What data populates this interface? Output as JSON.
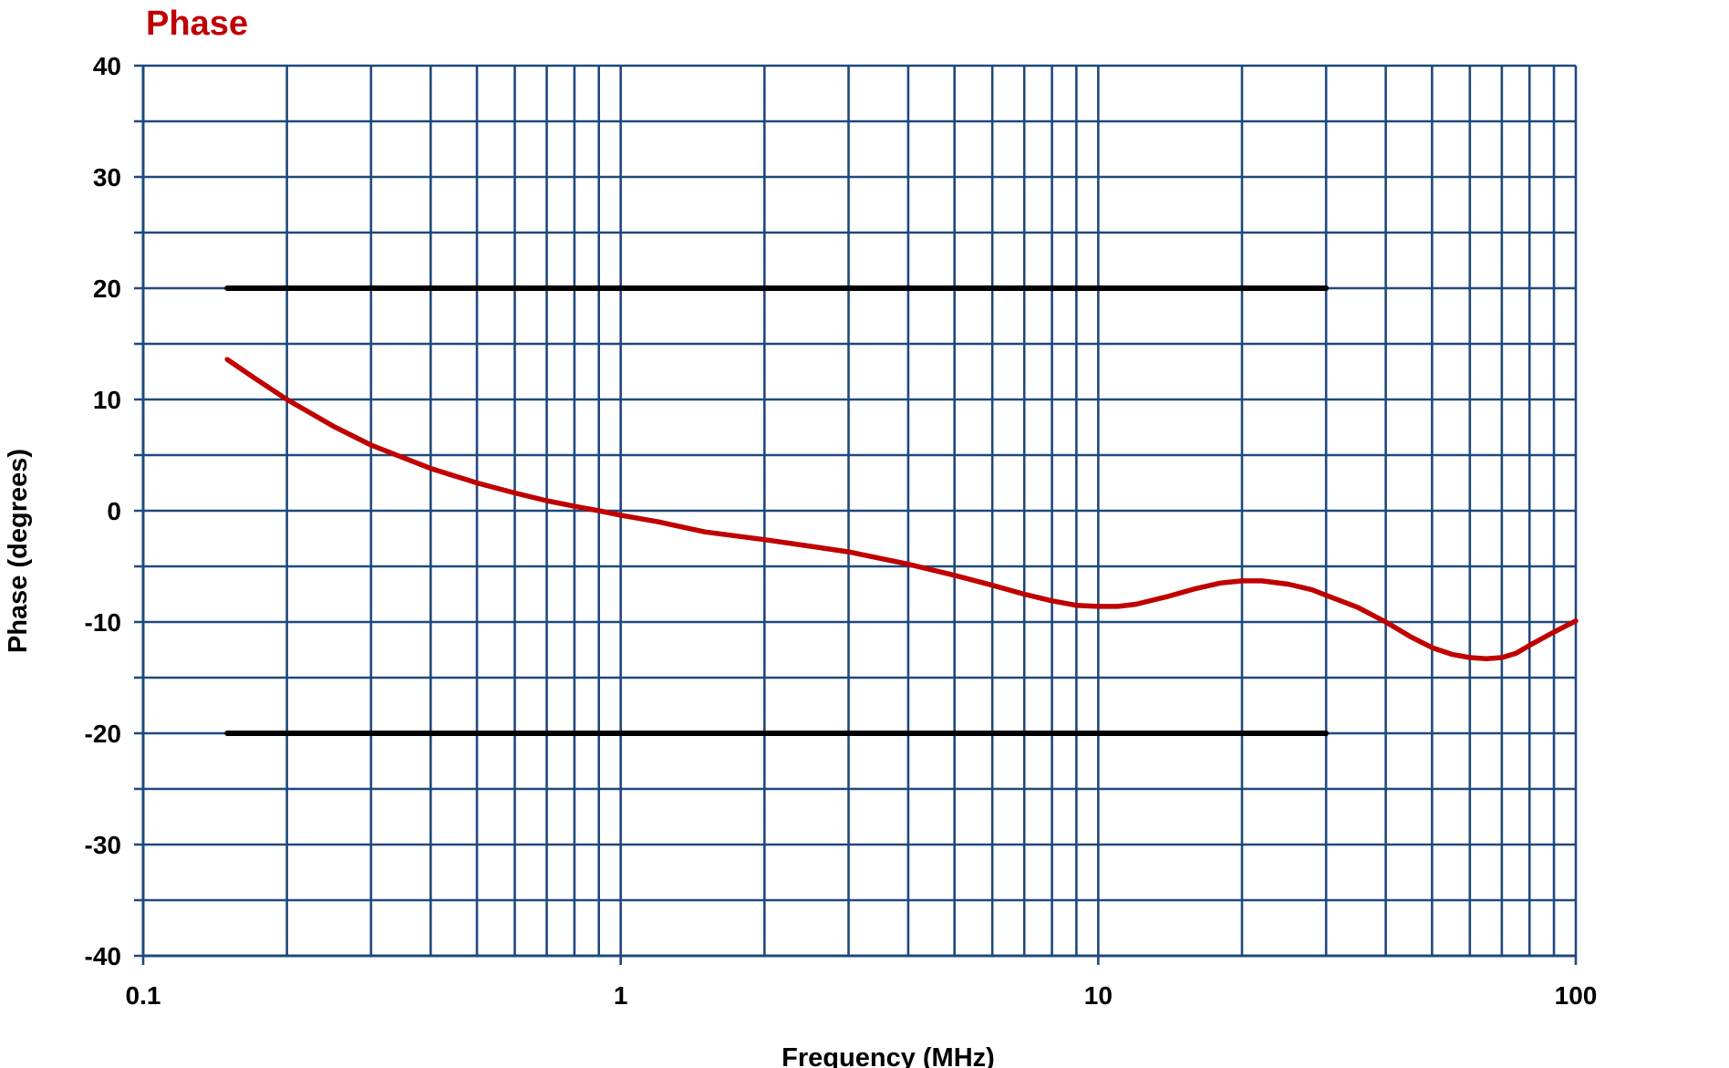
{
  "chart_data": {
    "type": "line",
    "title": "Phase",
    "xlabel": "Frequency (MHz)",
    "ylabel": "Phase (degrees)",
    "x_scale": "log",
    "xlim": [
      0.1,
      100
    ],
    "ylim": [
      -40,
      40
    ],
    "x_ticks": [
      {
        "value": 0.1,
        "label": "0.1"
      },
      {
        "value": 1,
        "label": "1"
      },
      {
        "value": 10,
        "label": "10"
      },
      {
        "value": 100,
        "label": "100"
      }
    ],
    "y_ticks": [
      {
        "value": 40,
        "label": "40"
      },
      {
        "value": 30,
        "label": "30"
      },
      {
        "value": 20,
        "label": "20"
      },
      {
        "value": 10,
        "label": "10"
      },
      {
        "value": 0,
        "label": "0"
      },
      {
        "value": -10,
        "label": "-10"
      },
      {
        "value": -20,
        "label": "-20"
      },
      {
        "value": -30,
        "label": "-30"
      },
      {
        "value": -40,
        "label": "-40"
      }
    ],
    "grid": true,
    "minor_grid": true,
    "colors": {
      "title": "#c00000",
      "grid": "#1f497d",
      "phase_curve": "#c00000",
      "limit_lines": "#000000"
    },
    "series": [
      {
        "role": "phase",
        "x": [
          0.15,
          0.17,
          0.2,
          0.25,
          0.3,
          0.4,
          0.5,
          0.6,
          0.7,
          0.8,
          0.9,
          1,
          1.2,
          1.5,
          2,
          2.5,
          3,
          4,
          5,
          6,
          7,
          8,
          9,
          10,
          11,
          12,
          14,
          16,
          18,
          20,
          22,
          25,
          28,
          30,
          35,
          40,
          45,
          50,
          55,
          60,
          65,
          70,
          75,
          80,
          90,
          100
        ],
        "y": [
          13.6,
          12.0,
          10.0,
          7.6,
          5.9,
          3.8,
          2.5,
          1.6,
          0.9,
          0.4,
          0.0,
          -0.4,
          -1.0,
          -1.9,
          -2.6,
          -3.2,
          -3.7,
          -4.8,
          -5.8,
          -6.7,
          -7.5,
          -8.1,
          -8.5,
          -8.6,
          -8.6,
          -8.4,
          -7.7,
          -7.0,
          -6.5,
          -6.3,
          -6.3,
          -6.6,
          -7.1,
          -7.6,
          -8.7,
          -10.0,
          -11.3,
          -12.3,
          -12.9,
          -13.2,
          -13.3,
          -13.2,
          -12.8,
          -12.1,
          -10.9,
          -9.9
        ]
      },
      {
        "role": "upper-limit",
        "x": [
          0.15,
          30
        ],
        "y": [
          20,
          20
        ]
      },
      {
        "role": "lower-limit",
        "x": [
          0.15,
          30
        ],
        "y": [
          -20,
          -20
        ]
      }
    ]
  }
}
